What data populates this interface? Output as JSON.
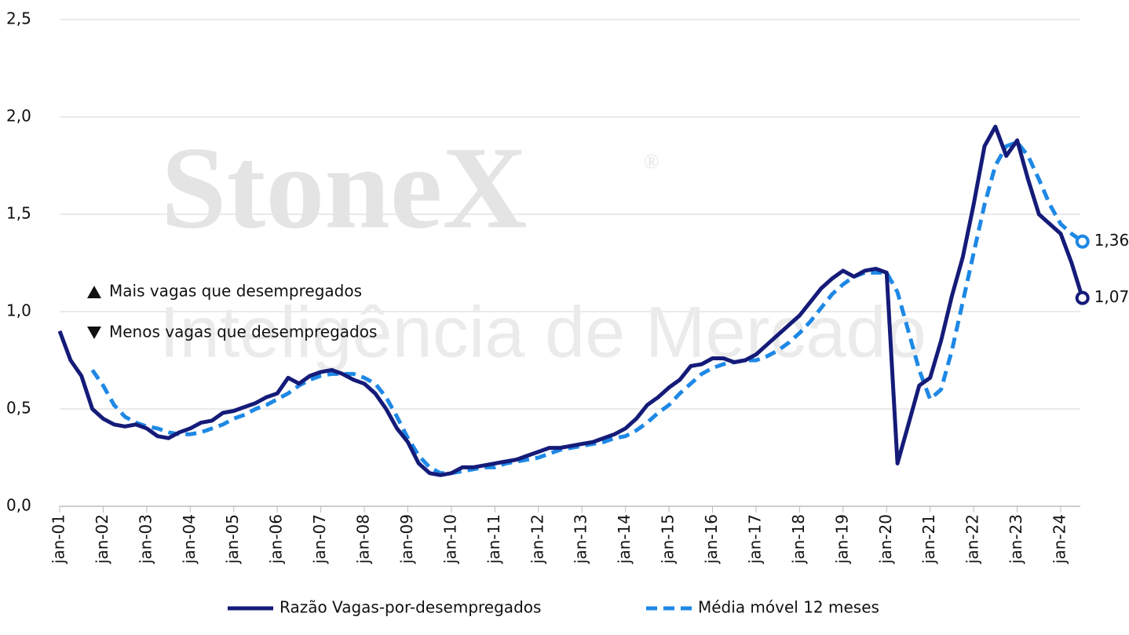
{
  "chart_data": {
    "type": "line",
    "watermark": {
      "brand": "StoneX",
      "mark": "®",
      "tagline": "Inteligência de Mercado"
    },
    "annotations": [
      "Mais vagas que desempregados",
      "Menos vagas que desempregados"
    ],
    "categories": [
      "jan-01",
      null,
      null,
      null,
      "jan-02",
      null,
      null,
      null,
      "jan-03",
      null,
      null,
      null,
      "jan-04",
      null,
      null,
      null,
      "jan-05",
      null,
      null,
      null,
      "jan-06",
      null,
      null,
      null,
      "jan-07",
      null,
      null,
      null,
      "jan-08",
      null,
      null,
      null,
      "jan-09",
      null,
      null,
      null,
      "jan-10",
      null,
      null,
      null,
      "jan-11",
      null,
      null,
      null,
      "jan-12",
      null,
      null,
      null,
      "jan-13",
      null,
      null,
      null,
      "jan-14",
      null,
      null,
      null,
      "jan-15",
      null,
      null,
      null,
      "jan-16",
      null,
      null,
      null,
      "jan-17",
      null,
      null,
      null,
      "jan-18",
      null,
      null,
      null,
      "jan-19",
      null,
      null,
      null,
      "jan-20",
      null,
      null,
      null,
      "jan-21",
      null,
      null,
      null,
      "jan-22",
      null,
      null,
      null,
      "jan-23",
      null,
      null,
      null,
      "jan-24",
      null,
      null
    ],
    "series": [
      {
        "name": "Razão Vagas-por-desempregados",
        "color": "#151b78",
        "dash": false,
        "values": [
          0.9,
          0.75,
          0.67,
          0.5,
          0.45,
          0.42,
          0.41,
          0.42,
          0.4,
          0.36,
          0.35,
          0.38,
          0.4,
          0.43,
          0.44,
          0.48,
          0.49,
          0.51,
          0.53,
          0.56,
          0.58,
          0.66,
          0.63,
          0.67,
          0.69,
          0.7,
          0.68,
          0.65,
          0.63,
          0.58,
          0.5,
          0.4,
          0.33,
          0.22,
          0.17,
          0.16,
          0.17,
          0.2,
          0.2,
          0.21,
          0.22,
          0.23,
          0.24,
          0.26,
          0.28,
          0.3,
          0.3,
          0.31,
          0.32,
          0.33,
          0.35,
          0.37,
          0.4,
          0.45,
          0.52,
          0.56,
          0.61,
          0.65,
          0.72,
          0.73,
          0.76,
          0.76,
          0.74,
          0.75,
          0.78,
          0.83,
          0.88,
          0.93,
          0.98,
          1.05,
          1.12,
          1.17,
          1.21,
          1.18,
          1.21,
          1.22,
          1.2,
          0.22,
          0.42,
          0.62,
          0.66,
          0.85,
          1.08,
          1.28,
          1.55,
          1.85,
          1.95,
          1.8,
          1.88,
          1.68,
          1.5,
          1.45,
          1.4,
          1.25,
          1.07
        ],
        "value_labels": [
          null,
          null,
          null,
          null,
          null,
          null,
          null,
          null,
          null,
          null,
          null,
          null,
          null,
          null,
          null,
          null,
          null,
          null,
          null,
          null,
          null,
          null,
          null,
          null,
          null,
          null,
          null,
          null,
          null,
          null,
          null,
          null,
          null,
          null,
          null,
          null,
          null,
          null,
          null,
          null,
          null,
          null,
          null,
          null,
          null,
          null,
          null,
          null,
          null,
          null,
          null,
          null,
          null,
          null,
          null,
          null,
          null,
          null,
          null,
          null,
          null,
          null,
          null,
          null,
          null,
          null,
          null,
          null,
          null,
          null,
          null,
          null,
          null,
          null,
          null,
          null,
          null,
          null,
          null,
          null,
          null,
          null,
          null,
          null,
          null,
          null,
          null,
          null,
          null,
          null,
          null,
          null,
          null,
          null,
          "1,07"
        ]
      },
      {
        "name": "Média móvel 12 meses",
        "color": "#1e88e5",
        "dash": true,
        "values": [
          null,
          null,
          null,
          0.7,
          0.62,
          0.52,
          0.46,
          0.43,
          0.41,
          0.4,
          0.38,
          0.37,
          0.37,
          0.38,
          0.4,
          0.42,
          0.45,
          0.47,
          0.5,
          0.52,
          0.55,
          0.58,
          0.62,
          0.65,
          0.67,
          0.68,
          0.68,
          0.68,
          0.66,
          0.63,
          0.56,
          0.46,
          0.35,
          0.26,
          0.2,
          0.17,
          0.17,
          0.18,
          0.19,
          0.2,
          0.2,
          0.22,
          0.23,
          0.24,
          0.25,
          0.27,
          0.29,
          0.3,
          0.31,
          0.32,
          0.33,
          0.35,
          0.36,
          0.39,
          0.43,
          0.48,
          0.52,
          0.58,
          0.63,
          0.68,
          0.71,
          0.73,
          0.74,
          0.75,
          0.75,
          0.77,
          0.8,
          0.84,
          0.89,
          0.95,
          1.02,
          1.09,
          1.14,
          1.18,
          1.2,
          1.2,
          1.2,
          1.1,
          0.9,
          0.7,
          0.55,
          0.6,
          0.8,
          1.05,
          1.3,
          1.55,
          1.75,
          1.85,
          1.87,
          1.8,
          1.68,
          1.55,
          1.45,
          1.4,
          1.36
        ],
        "value_labels": [
          null,
          null,
          null,
          null,
          null,
          null,
          null,
          null,
          null,
          null,
          null,
          null,
          null,
          null,
          null,
          null,
          null,
          null,
          null,
          null,
          null,
          null,
          null,
          null,
          null,
          null,
          null,
          null,
          null,
          null,
          null,
          null,
          null,
          null,
          null,
          null,
          null,
          null,
          null,
          null,
          null,
          null,
          null,
          null,
          null,
          null,
          null,
          null,
          null,
          null,
          null,
          null,
          null,
          null,
          null,
          null,
          null,
          null,
          null,
          null,
          null,
          null,
          null,
          null,
          null,
          null,
          null,
          null,
          null,
          null,
          null,
          null,
          null,
          null,
          null,
          null,
          null,
          null,
          null,
          null,
          null,
          null,
          null,
          null,
          null,
          null,
          null,
          null,
          null,
          null,
          null,
          null,
          null,
          null,
          "1,36"
        ]
      }
    ],
    "ylim": [
      0,
      2.5
    ],
    "yticks": [
      {
        "value": 0,
        "label": "0,0"
      },
      {
        "value": 0.5,
        "label": "0,5"
      },
      {
        "value": 1,
        "label": "1,0"
      },
      {
        "value": 1.5,
        "label": "1,5"
      },
      {
        "value": 2,
        "label": "2,0"
      },
      {
        "value": 2.5,
        "label": "2,5"
      }
    ],
    "grid": true
  }
}
